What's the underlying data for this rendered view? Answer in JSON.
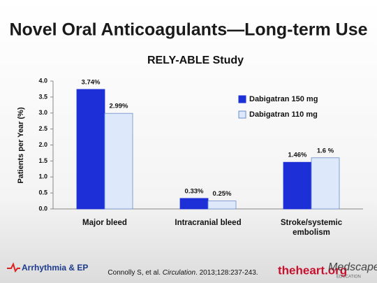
{
  "slide": {
    "title": "Novel Oral Anticoagulants—Long-term Use"
  },
  "chart_data": {
    "type": "bar",
    "title": "RELY-ABLE Study",
    "ylabel": "Patients per Year (%)",
    "categories": [
      "Major bleed",
      "Intracranial bleed",
      "Stroke/systemic embolism"
    ],
    "series": [
      {
        "name": "Dabigatran 150 mg",
        "color": "#1d2fd6",
        "values": [
          3.74,
          0.33,
          1.46
        ],
        "value_labels": [
          "3.74%",
          "0.33%",
          "1.46%"
        ]
      },
      {
        "name": "Dabigatran 110 mg",
        "color": "#dde9fb",
        "values": [
          2.99,
          0.25,
          1.6
        ],
        "value_labels": [
          "2.99%",
          "0.25%",
          "1.6 %"
        ]
      }
    ],
    "ylim": [
      0,
      4
    ],
    "yticks": [
      {
        "value": 0,
        "label": "0.0"
      },
      0.5,
      {
        "value": 1,
        "label": "1.0"
      },
      1.5,
      {
        "value": 2,
        "label": "2.0"
      },
      2.5,
      {
        "value": 3,
        "label": "3.0"
      },
      3.5,
      {
        "value": 4,
        "label": "4.0"
      }
    ],
    "grid": false,
    "legend": "upper right"
  },
  "footer": {
    "society": "Arrhythmia & EP",
    "citation_pre": "Connolly S, et al. ",
    "citation_journal": "Circulation",
    "citation_post": ". 2013;128:237-243.",
    "logo1": "theheart.org",
    "logo2": "Medscape",
    "logo2_sub": "EDUCATION"
  }
}
